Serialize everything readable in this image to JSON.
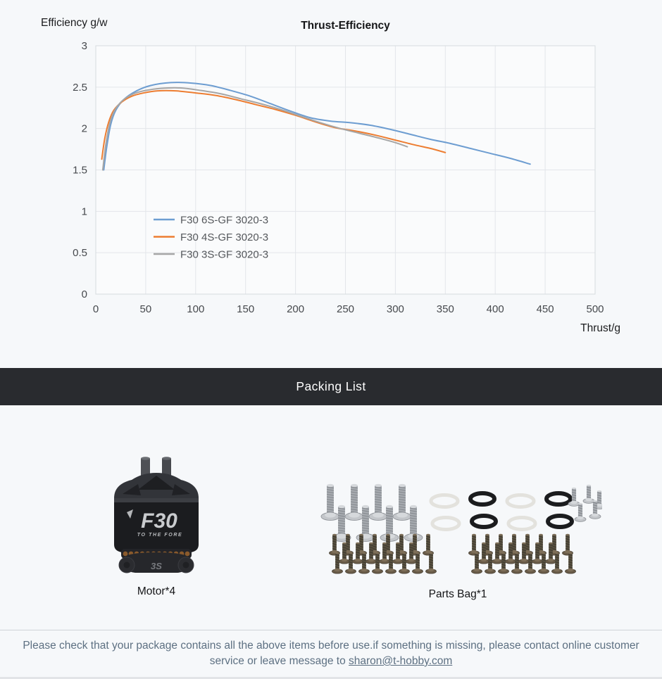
{
  "chart": {
    "y_axis_title": "Efficiency g/w",
    "title": "Thrust-Efficiency",
    "x_axis_title": "Thrust/g"
  },
  "chart_data": {
    "type": "line",
    "title": "Thrust-Efficiency",
    "xlabel": "Thrust/g",
    "ylabel": "Efficiency g/w",
    "xlim": [
      0,
      500
    ],
    "ylim": [
      0,
      3
    ],
    "xticks": [
      0,
      50,
      100,
      150,
      200,
      250,
      300,
      350,
      400,
      450,
      500
    ],
    "yticks": [
      0,
      0.5,
      1,
      1.5,
      2,
      2.5,
      3
    ],
    "grid": true,
    "legend_position": "inside-left-middle",
    "colors": {
      "plot_bg": "#fafbfc",
      "grid": "#e3e6ea",
      "border": "#d7dbdf",
      "tick_text": "#46494d",
      "legend_text": "#55585c"
    },
    "series": [
      {
        "name": "F30 6S-GF 3020-3",
        "color": "#6d9dd1",
        "points": [
          [
            8,
            1.5
          ],
          [
            11,
            1.78
          ],
          [
            15,
            2.05
          ],
          [
            20,
            2.22
          ],
          [
            28,
            2.35
          ],
          [
            40,
            2.45
          ],
          [
            55,
            2.52
          ],
          [
            75,
            2.555
          ],
          [
            95,
            2.55
          ],
          [
            115,
            2.52
          ],
          [
            135,
            2.46
          ],
          [
            155,
            2.39
          ],
          [
            175,
            2.3
          ],
          [
            195,
            2.21
          ],
          [
            215,
            2.13
          ],
          [
            235,
            2.09
          ],
          [
            255,
            2.07
          ],
          [
            275,
            2.04
          ],
          [
            295,
            1.99
          ],
          [
            315,
            1.93
          ],
          [
            335,
            1.87
          ],
          [
            355,
            1.82
          ],
          [
            375,
            1.76
          ],
          [
            395,
            1.7
          ],
          [
            415,
            1.64
          ],
          [
            435,
            1.57
          ]
        ]
      },
      {
        "name": "F30 4S-GF 3020-3",
        "color": "#ed7d31",
        "points": [
          [
            6,
            1.63
          ],
          [
            9,
            1.88
          ],
          [
            13,
            2.08
          ],
          [
            18,
            2.22
          ],
          [
            26,
            2.32
          ],
          [
            36,
            2.39
          ],
          [
            48,
            2.43
          ],
          [
            62,
            2.455
          ],
          [
            80,
            2.455
          ],
          [
            100,
            2.43
          ],
          [
            120,
            2.4
          ],
          [
            140,
            2.35
          ],
          [
            160,
            2.29
          ],
          [
            180,
            2.23
          ],
          [
            200,
            2.16
          ],
          [
            220,
            2.08
          ],
          [
            240,
            2.01
          ],
          [
            260,
            1.97
          ],
          [
            280,
            1.92
          ],
          [
            300,
            1.86
          ],
          [
            320,
            1.8
          ],
          [
            335,
            1.76
          ],
          [
            350,
            1.71
          ]
        ]
      },
      {
        "name": "F30 3S-GF 3020-3",
        "color": "#a6a6a6",
        "points": [
          [
            7,
            1.5
          ],
          [
            10,
            1.8
          ],
          [
            14,
            2.06
          ],
          [
            19,
            2.22
          ],
          [
            27,
            2.34
          ],
          [
            38,
            2.42
          ],
          [
            50,
            2.46
          ],
          [
            65,
            2.485
          ],
          [
            85,
            2.49
          ],
          [
            105,
            2.46
          ],
          [
            125,
            2.42
          ],
          [
            145,
            2.36
          ],
          [
            165,
            2.3
          ],
          [
            185,
            2.23
          ],
          [
            205,
            2.15
          ],
          [
            225,
            2.07
          ],
          [
            245,
            2.0
          ],
          [
            265,
            1.94
          ],
          [
            285,
            1.88
          ],
          [
            300,
            1.83
          ],
          [
            312,
            1.78
          ]
        ]
      }
    ]
  },
  "packing": {
    "banner": "Packing List",
    "banner_bg": "#292b2f",
    "items": [
      {
        "label": "Motor*4",
        "description": "black brushless motor with F30 logo"
      },
      {
        "label": "Parts Bag*1",
        "description": "mounting screws, washers and o-rings"
      }
    ],
    "motor_graphic": {
      "logo": "F30",
      "tagline": "TO THE FORE",
      "badge": "3S"
    },
    "parts_graphic": {
      "large_screws": 8,
      "washers": 4,
      "o_rings": 4,
      "small_screws": 5,
      "bottom_screw_clusters": 2,
      "screws_per_cluster": 22
    }
  },
  "footer": {
    "text_before_link": "Please check that your package contains all the above items before use.if something is missing, please contact online customer service or leave message to ",
    "email": "sharon@t-hobby.com",
    "text_color": "#5d7082"
  }
}
